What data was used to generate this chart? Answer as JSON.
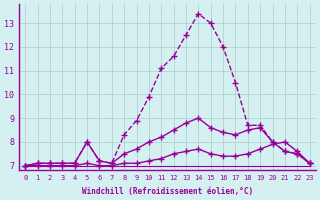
{
  "xlabel": "Windchill (Refroidissement éolien,°C)",
  "ylabel": "",
  "bg_color": "#d4f0f0",
  "line_color": "#990099",
  "grid_color": "#aacccc",
  "xlim": [
    -0.5,
    23.5
  ],
  "ylim": [
    6.8,
    13.8
  ],
  "xticks": [
    0,
    1,
    2,
    3,
    4,
    5,
    6,
    7,
    8,
    9,
    10,
    11,
    12,
    13,
    14,
    15,
    16,
    17,
    18,
    19,
    20,
    21,
    22,
    23
  ],
  "yticks": [
    7,
    8,
    9,
    10,
    11,
    12,
    13
  ],
  "line1": [
    7.0,
    7.1,
    7.1,
    7.1,
    7.1,
    8.0,
    7.2,
    7.1,
    8.3,
    8.9,
    9.9,
    11.1,
    11.6,
    12.5,
    13.4,
    13.0,
    12.0,
    10.5,
    8.7,
    8.7,
    8.0,
    7.6,
    7.5,
    7.1
  ],
  "line2": [
    7.0,
    7.1,
    7.1,
    7.1,
    7.1,
    8.0,
    7.2,
    7.1,
    7.5,
    7.7,
    8.0,
    8.2,
    8.5,
    8.8,
    9.0,
    8.6,
    8.4,
    8.3,
    8.5,
    8.6,
    8.0,
    7.6,
    7.5,
    7.1
  ],
  "line3": [
    7.0,
    7.0,
    7.0,
    7.0,
    7.0,
    7.1,
    7.0,
    7.0,
    7.1,
    7.1,
    7.2,
    7.3,
    7.5,
    7.6,
    7.7,
    7.5,
    7.4,
    7.4,
    7.5,
    7.7,
    7.9,
    8.0,
    7.6,
    7.1
  ],
  "line4": [
    7.0,
    7.0,
    7.0,
    7.0,
    7.0,
    7.0,
    7.0,
    7.0,
    7.0,
    7.0,
    7.0,
    7.0,
    7.0,
    7.0,
    7.0,
    7.0,
    7.0,
    7.0,
    7.0,
    7.0,
    7.0,
    7.0,
    7.0,
    7.0
  ]
}
